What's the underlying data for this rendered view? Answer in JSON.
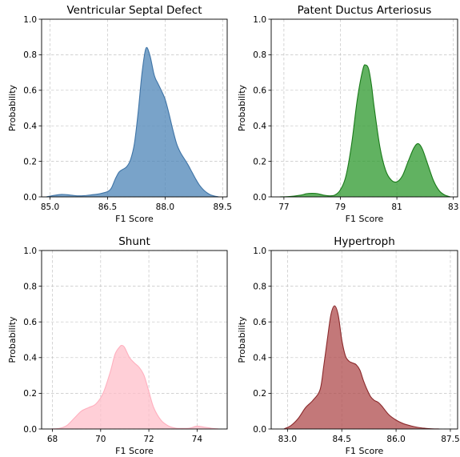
{
  "chart_data": [
    {
      "type": "area",
      "title": "Ventricular Septal Defect",
      "xlabel": "F1 Score",
      "ylabel": "Probability",
      "xlim": [
        84.78,
        89.62
      ],
      "ylim": [
        0,
        1
      ],
      "xticks": [
        85.0,
        86.5,
        88.0,
        89.5
      ],
      "xtick_labels": [
        "85.0",
        "86.5",
        "88.0",
        "89.5"
      ],
      "yticks": [
        0,
        0.2,
        0.4,
        0.6,
        0.8,
        1.0
      ],
      "ytick_labels": [
        "0.0",
        "0.2",
        "0.4",
        "0.6",
        "0.8",
        "1.0"
      ],
      "grid": true,
      "fill_color": "#4f86b8",
      "edge_color": "#3f74a6",
      "x": [
        84.9,
        85.1,
        85.3,
        85.5,
        85.7,
        85.9,
        86.1,
        86.3,
        86.5,
        86.6,
        86.7,
        86.8,
        86.9,
        87.0,
        87.1,
        87.2,
        87.3,
        87.4,
        87.5,
        87.6,
        87.7,
        87.75,
        87.8,
        87.9,
        88.0,
        88.1,
        88.2,
        88.3,
        88.4,
        88.5,
        88.6,
        88.7,
        88.8,
        88.9,
        89.0,
        89.1,
        89.2,
        89.3,
        89.4
      ],
      "y": [
        0.0,
        0.008,
        0.014,
        0.011,
        0.006,
        0.007,
        0.012,
        0.018,
        0.03,
        0.05,
        0.1,
        0.14,
        0.155,
        0.17,
        0.21,
        0.3,
        0.48,
        0.7,
        0.836,
        0.8,
        0.7,
        0.665,
        0.644,
        0.6,
        0.55,
        0.47,
        0.38,
        0.3,
        0.25,
        0.215,
        0.18,
        0.14,
        0.1,
        0.065,
        0.04,
        0.022,
        0.01,
        0.004,
        0.0
      ]
    },
    {
      "type": "area",
      "title": "Patent Ductus Arteriosus",
      "xlabel": "F1 Score",
      "ylabel": "Probability",
      "xlim": [
        76.55,
        83.15
      ],
      "ylim": [
        0,
        1
      ],
      "xticks": [
        77,
        79,
        81,
        83
      ],
      "xtick_labels": [
        "77",
        "79",
        "81",
        "83"
      ],
      "yticks": [
        0,
        0.2,
        0.4,
        0.6,
        0.8,
        1.0
      ],
      "ytick_labels": [
        "0.0",
        "0.2",
        "0.4",
        "0.6",
        "0.8",
        "1.0"
      ],
      "grid": true,
      "fill_color": "#2f9a2f",
      "edge_color": "#1a7a1a",
      "x": [
        76.85,
        77.2,
        77.6,
        77.8,
        78.0,
        78.2,
        78.4,
        78.6,
        78.8,
        79.0,
        79.2,
        79.4,
        79.6,
        79.8,
        79.9,
        80.0,
        80.1,
        80.2,
        80.4,
        80.6,
        80.8,
        81.0,
        81.2,
        81.4,
        81.6,
        81.75,
        81.9,
        82.1,
        82.3,
        82.5,
        82.7,
        82.9
      ],
      "y": [
        0.0,
        0.002,
        0.01,
        0.018,
        0.02,
        0.018,
        0.01,
        0.006,
        0.01,
        0.04,
        0.12,
        0.3,
        0.55,
        0.72,
        0.742,
        0.72,
        0.63,
        0.5,
        0.28,
        0.15,
        0.095,
        0.085,
        0.12,
        0.2,
        0.275,
        0.3,
        0.27,
        0.18,
        0.09,
        0.035,
        0.01,
        0.0
      ]
    },
    {
      "type": "area",
      "title": "Shunt",
      "xlabel": "F1 Score",
      "ylabel": "Probability",
      "xlim": [
        67.55,
        75.25
      ],
      "ylim": [
        0,
        1
      ],
      "xticks": [
        68,
        70,
        72,
        74
      ],
      "xtick_labels": [
        "68",
        "70",
        "72",
        "74"
      ],
      "yticks": [
        0,
        0.2,
        0.4,
        0.6,
        0.8,
        1.0
      ],
      "ytick_labels": [
        "0.0",
        "0.2",
        "0.4",
        "0.6",
        "0.8",
        "1.0"
      ],
      "grid": true,
      "fill_color": "#ffc0cb",
      "edge_color": "#ffb0bf",
      "x": [
        67.9,
        68.3,
        68.6,
        68.9,
        69.2,
        69.5,
        69.8,
        70.1,
        70.4,
        70.6,
        70.8,
        70.9,
        71.0,
        71.2,
        71.4,
        71.6,
        71.8,
        72.0,
        72.2,
        72.5,
        72.8,
        73.1,
        73.4,
        73.7,
        74.0,
        74.3,
        74.6,
        74.9
      ],
      "y": [
        0.0,
        0.004,
        0.02,
        0.06,
        0.1,
        0.12,
        0.14,
        0.2,
        0.32,
        0.42,
        0.462,
        0.468,
        0.455,
        0.4,
        0.37,
        0.345,
        0.3,
        0.21,
        0.12,
        0.05,
        0.018,
        0.005,
        0.003,
        0.005,
        0.016,
        0.01,
        0.004,
        0.0
      ]
    },
    {
      "type": "area",
      "title": "Hypertroph",
      "xlabel": "F1 Score",
      "ylabel": "Probability",
      "xlim": [
        82.55,
        87.7
      ],
      "ylim": [
        0,
        1
      ],
      "xticks": [
        83.0,
        84.5,
        86.0,
        87.5
      ],
      "xtick_labels": [
        "83.0",
        "84.5",
        "86.0",
        "87.5"
      ],
      "yticks": [
        0,
        0.2,
        0.4,
        0.6,
        0.8,
        1.0
      ],
      "ytick_labels": [
        "0.0",
        "0.2",
        "0.4",
        "0.6",
        "0.8",
        "1.0"
      ],
      "grid": true,
      "fill_color": "#b04d4f",
      "edge_color": "#8b2a2c",
      "x": [
        82.9,
        83.1,
        83.3,
        83.5,
        83.7,
        83.9,
        84.0,
        84.1,
        84.2,
        84.3,
        84.4,
        84.5,
        84.6,
        84.7,
        84.8,
        84.9,
        85.0,
        85.1,
        85.2,
        85.3,
        85.4,
        85.5,
        85.6,
        85.8,
        86.0,
        86.2,
        86.4,
        86.6,
        86.8,
        87.0,
        87.2
      ],
      "y": [
        0.0,
        0.02,
        0.06,
        0.12,
        0.16,
        0.22,
        0.35,
        0.5,
        0.64,
        0.69,
        0.64,
        0.5,
        0.41,
        0.38,
        0.37,
        0.36,
        0.33,
        0.27,
        0.22,
        0.18,
        0.16,
        0.15,
        0.13,
        0.08,
        0.05,
        0.03,
        0.018,
        0.009,
        0.004,
        0.001,
        0.0
      ]
    }
  ]
}
